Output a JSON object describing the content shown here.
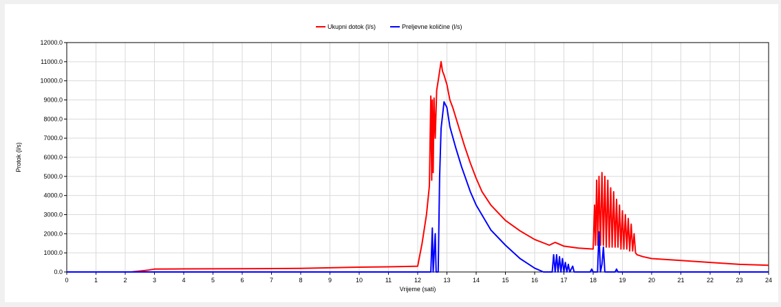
{
  "chart_data": {
    "type": "line",
    "xlabel": "Vrijeme (sati)",
    "ylabel": "Protok (l/s)",
    "xlim": [
      0,
      24
    ],
    "ylim": [
      0,
      12000
    ],
    "x_ticks": [
      "0",
      "1",
      "2",
      "3",
      "4",
      "5",
      "6",
      "7",
      "8",
      "9",
      "10",
      "11",
      "12",
      "13",
      "14",
      "15",
      "16",
      "17",
      "18",
      "19",
      "20",
      "21",
      "22",
      "23",
      "24"
    ],
    "y_ticks": [
      "0.0",
      "1000.0",
      "2000.0",
      "3000.0",
      "4000.0",
      "5000.0",
      "6000.0",
      "7000.0",
      "8000.0",
      "9000.0",
      "10000.0",
      "11000.0",
      "12000.0"
    ],
    "grid": true,
    "legend_position": "top-center",
    "series": [
      {
        "name": "Ukupni dotok (l/s)",
        "color": "#ff0000",
        "points": [
          [
            0,
            0
          ],
          [
            2.2,
            0
          ],
          [
            2.5,
            50
          ],
          [
            2.8,
            100
          ],
          [
            3.0,
            150
          ],
          [
            4,
            160
          ],
          [
            6,
            170
          ],
          [
            8,
            190
          ],
          [
            9,
            220
          ],
          [
            10,
            250
          ],
          [
            11,
            270
          ],
          [
            12.0,
            300
          ],
          [
            12.15,
            1500
          ],
          [
            12.3,
            3000
          ],
          [
            12.4,
            4500
          ],
          [
            12.45,
            9200
          ],
          [
            12.48,
            4800
          ],
          [
            12.5,
            9000
          ],
          [
            12.53,
            5200
          ],
          [
            12.56,
            9100
          ],
          [
            12.6,
            7000
          ],
          [
            12.65,
            9500
          ],
          [
            12.7,
            10000
          ],
          [
            12.75,
            10500
          ],
          [
            12.8,
            11000
          ],
          [
            12.85,
            10500
          ],
          [
            12.9,
            10300
          ],
          [
            13.0,
            9800
          ],
          [
            13.1,
            9000
          ],
          [
            13.2,
            8600
          ],
          [
            13.4,
            7600
          ],
          [
            13.6,
            6600
          ],
          [
            13.8,
            5700
          ],
          [
            14.0,
            4900
          ],
          [
            14.2,
            4200
          ],
          [
            14.5,
            3500
          ],
          [
            15.0,
            2700
          ],
          [
            15.5,
            2150
          ],
          [
            16.0,
            1700
          ],
          [
            16.5,
            1400
          ],
          [
            16.7,
            1550
          ],
          [
            17.0,
            1350
          ],
          [
            17.5,
            1250
          ],
          [
            18.0,
            1200
          ],
          [
            18.05,
            3500
          ],
          [
            18.08,
            1400
          ],
          [
            18.12,
            4800
          ],
          [
            18.16,
            1400
          ],
          [
            18.2,
            5000
          ],
          [
            18.25,
            1400
          ],
          [
            18.3,
            5200
          ],
          [
            18.35,
            1400
          ],
          [
            18.4,
            5000
          ],
          [
            18.45,
            1300
          ],
          [
            18.5,
            4800
          ],
          [
            18.55,
            1300
          ],
          [
            18.6,
            4400
          ],
          [
            18.65,
            1300
          ],
          [
            18.7,
            4200
          ],
          [
            18.75,
            1300
          ],
          [
            18.8,
            3800
          ],
          [
            18.85,
            1300
          ],
          [
            18.9,
            3500
          ],
          [
            18.95,
            1200
          ],
          [
            19.0,
            3200
          ],
          [
            19.05,
            1200
          ],
          [
            19.1,
            3000
          ],
          [
            19.15,
            1200
          ],
          [
            19.2,
            2800
          ],
          [
            19.25,
            1100
          ],
          [
            19.3,
            2500
          ],
          [
            19.35,
            1100
          ],
          [
            19.4,
            2000
          ],
          [
            19.45,
            1000
          ],
          [
            19.5,
            900
          ],
          [
            19.7,
            800
          ],
          [
            20,
            700
          ],
          [
            21,
            600
          ],
          [
            22,
            500
          ],
          [
            23,
            400
          ],
          [
            24,
            350
          ]
        ]
      },
      {
        "name": "Preljevne količine (l/s)",
        "color": "#0000ff",
        "points": [
          [
            0,
            0
          ],
          [
            12.45,
            0
          ],
          [
            12.5,
            2300
          ],
          [
            12.53,
            0
          ],
          [
            12.6,
            2000
          ],
          [
            12.63,
            0
          ],
          [
            12.7,
            0
          ],
          [
            12.75,
            5000
          ],
          [
            12.8,
            7500
          ],
          [
            12.9,
            8900
          ],
          [
            13.0,
            8600
          ],
          [
            13.1,
            7600
          ],
          [
            13.3,
            6500
          ],
          [
            13.5,
            5500
          ],
          [
            13.8,
            4200
          ],
          [
            14.0,
            3500
          ],
          [
            14.5,
            2200
          ],
          [
            15.0,
            1400
          ],
          [
            15.5,
            700
          ],
          [
            16.0,
            200
          ],
          [
            16.3,
            0
          ],
          [
            16.6,
            0
          ],
          [
            16.65,
            900
          ],
          [
            16.7,
            0
          ],
          [
            16.75,
            900
          ],
          [
            16.8,
            0
          ],
          [
            16.85,
            800
          ],
          [
            16.9,
            0
          ],
          [
            16.95,
            700
          ],
          [
            17.0,
            0
          ],
          [
            17.05,
            500
          ],
          [
            17.1,
            0
          ],
          [
            17.15,
            400
          ],
          [
            17.2,
            0
          ],
          [
            17.3,
            300
          ],
          [
            17.35,
            0
          ],
          [
            17.5,
            0
          ],
          [
            17.9,
            0
          ],
          [
            17.95,
            150
          ],
          [
            18.0,
            0
          ],
          [
            18.15,
            0
          ],
          [
            18.2,
            2100
          ],
          [
            18.25,
            0
          ],
          [
            18.3,
            400
          ],
          [
            18.35,
            1300
          ],
          [
            18.4,
            0
          ],
          [
            18.75,
            0
          ],
          [
            18.8,
            150
          ],
          [
            18.85,
            0
          ],
          [
            24,
            0
          ]
        ]
      }
    ]
  }
}
